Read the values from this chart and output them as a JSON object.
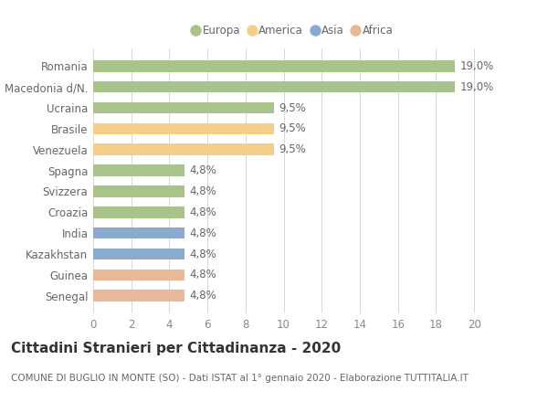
{
  "categories": [
    "Romania",
    "Macedonia d/N.",
    "Ucraina",
    "Brasile",
    "Venezuela",
    "Spagna",
    "Svizzera",
    "Croazia",
    "India",
    "Kazakhstan",
    "Guinea",
    "Senegal"
  ],
  "values": [
    19.0,
    19.0,
    9.5,
    9.5,
    9.5,
    4.8,
    4.8,
    4.8,
    4.8,
    4.8,
    4.8,
    4.8
  ],
  "labels": [
    "19,0%",
    "19,0%",
    "9,5%",
    "9,5%",
    "9,5%",
    "4,8%",
    "4,8%",
    "4,8%",
    "4,8%",
    "4,8%",
    "4,8%",
    "4,8%"
  ],
  "colors": [
    "#a8c48a",
    "#a8c48a",
    "#a8c48a",
    "#f5cf87",
    "#f5cf87",
    "#a8c48a",
    "#a8c48a",
    "#a8c48a",
    "#8aaacf",
    "#8aaacf",
    "#e8b898",
    "#e8b898"
  ],
  "legend_labels": [
    "Europa",
    "America",
    "Asia",
    "Africa"
  ],
  "legend_colors": [
    "#a8c48a",
    "#f5cf87",
    "#8aaacf",
    "#e8b898"
  ],
  "title": "Cittadini Stranieri per Cittadinanza - 2020",
  "subtitle": "COMUNE DI BUGLIO IN MONTE (SO) - Dati ISTAT al 1° gennaio 2020 - Elaborazione TUTTITALIA.IT",
  "xlim": [
    0,
    21
  ],
  "xticks": [
    0,
    2,
    4,
    6,
    8,
    10,
    12,
    14,
    16,
    18,
    20
  ],
  "bg_color": "#ffffff",
  "grid_color": "#d8d8d8",
  "bar_height": 0.55,
  "label_fontsize": 8.5,
  "tick_fontsize": 8.5,
  "title_fontsize": 11,
  "subtitle_fontsize": 7.5
}
